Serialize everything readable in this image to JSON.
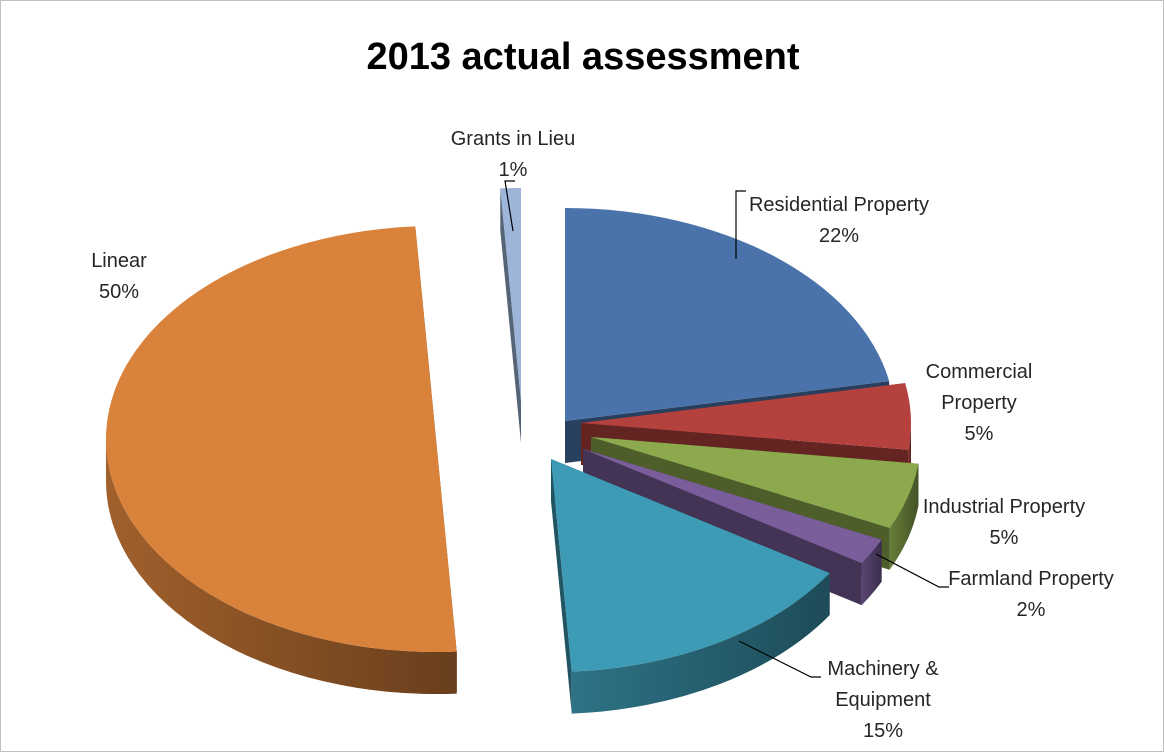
{
  "chart_data": {
    "type": "pie",
    "title": "2013 actual assessment",
    "slices": [
      {
        "name": "Residential Property",
        "value": 22,
        "label_lines": [
          "Residential Property",
          "22%"
        ],
        "color": "#4a72ab"
      },
      {
        "name": "Commercial Property",
        "value": 5,
        "label_lines": [
          "Commercial",
          "Property",
          "5%"
        ],
        "color": "#b5413e"
      },
      {
        "name": "Industrial Property",
        "value": 5,
        "label_lines": [
          "Industrial Property",
          "5%"
        ],
        "color": "#8caa4d"
      },
      {
        "name": "Farmland Property",
        "value": 2,
        "label_lines": [
          "Farmland Property",
          "2%"
        ],
        "color": "#7a5e9b"
      },
      {
        "name": "Machinery & Equipment",
        "value": 15,
        "label_lines": [
          "Machinery &",
          "Equipment",
          "15%"
        ],
        "color": "#3e9bb5"
      },
      {
        "name": "Linear",
        "value": 50,
        "label_lines": [
          "Linear",
          "50%"
        ],
        "color": "#d9823b"
      },
      {
        "name": "Grants in Lieu",
        "value": 1,
        "label_lines": [
          "Grants in Lieu",
          "1%"
        ],
        "color": "#9db5d9"
      }
    ],
    "legend": "none",
    "style": "3d-exploded"
  }
}
